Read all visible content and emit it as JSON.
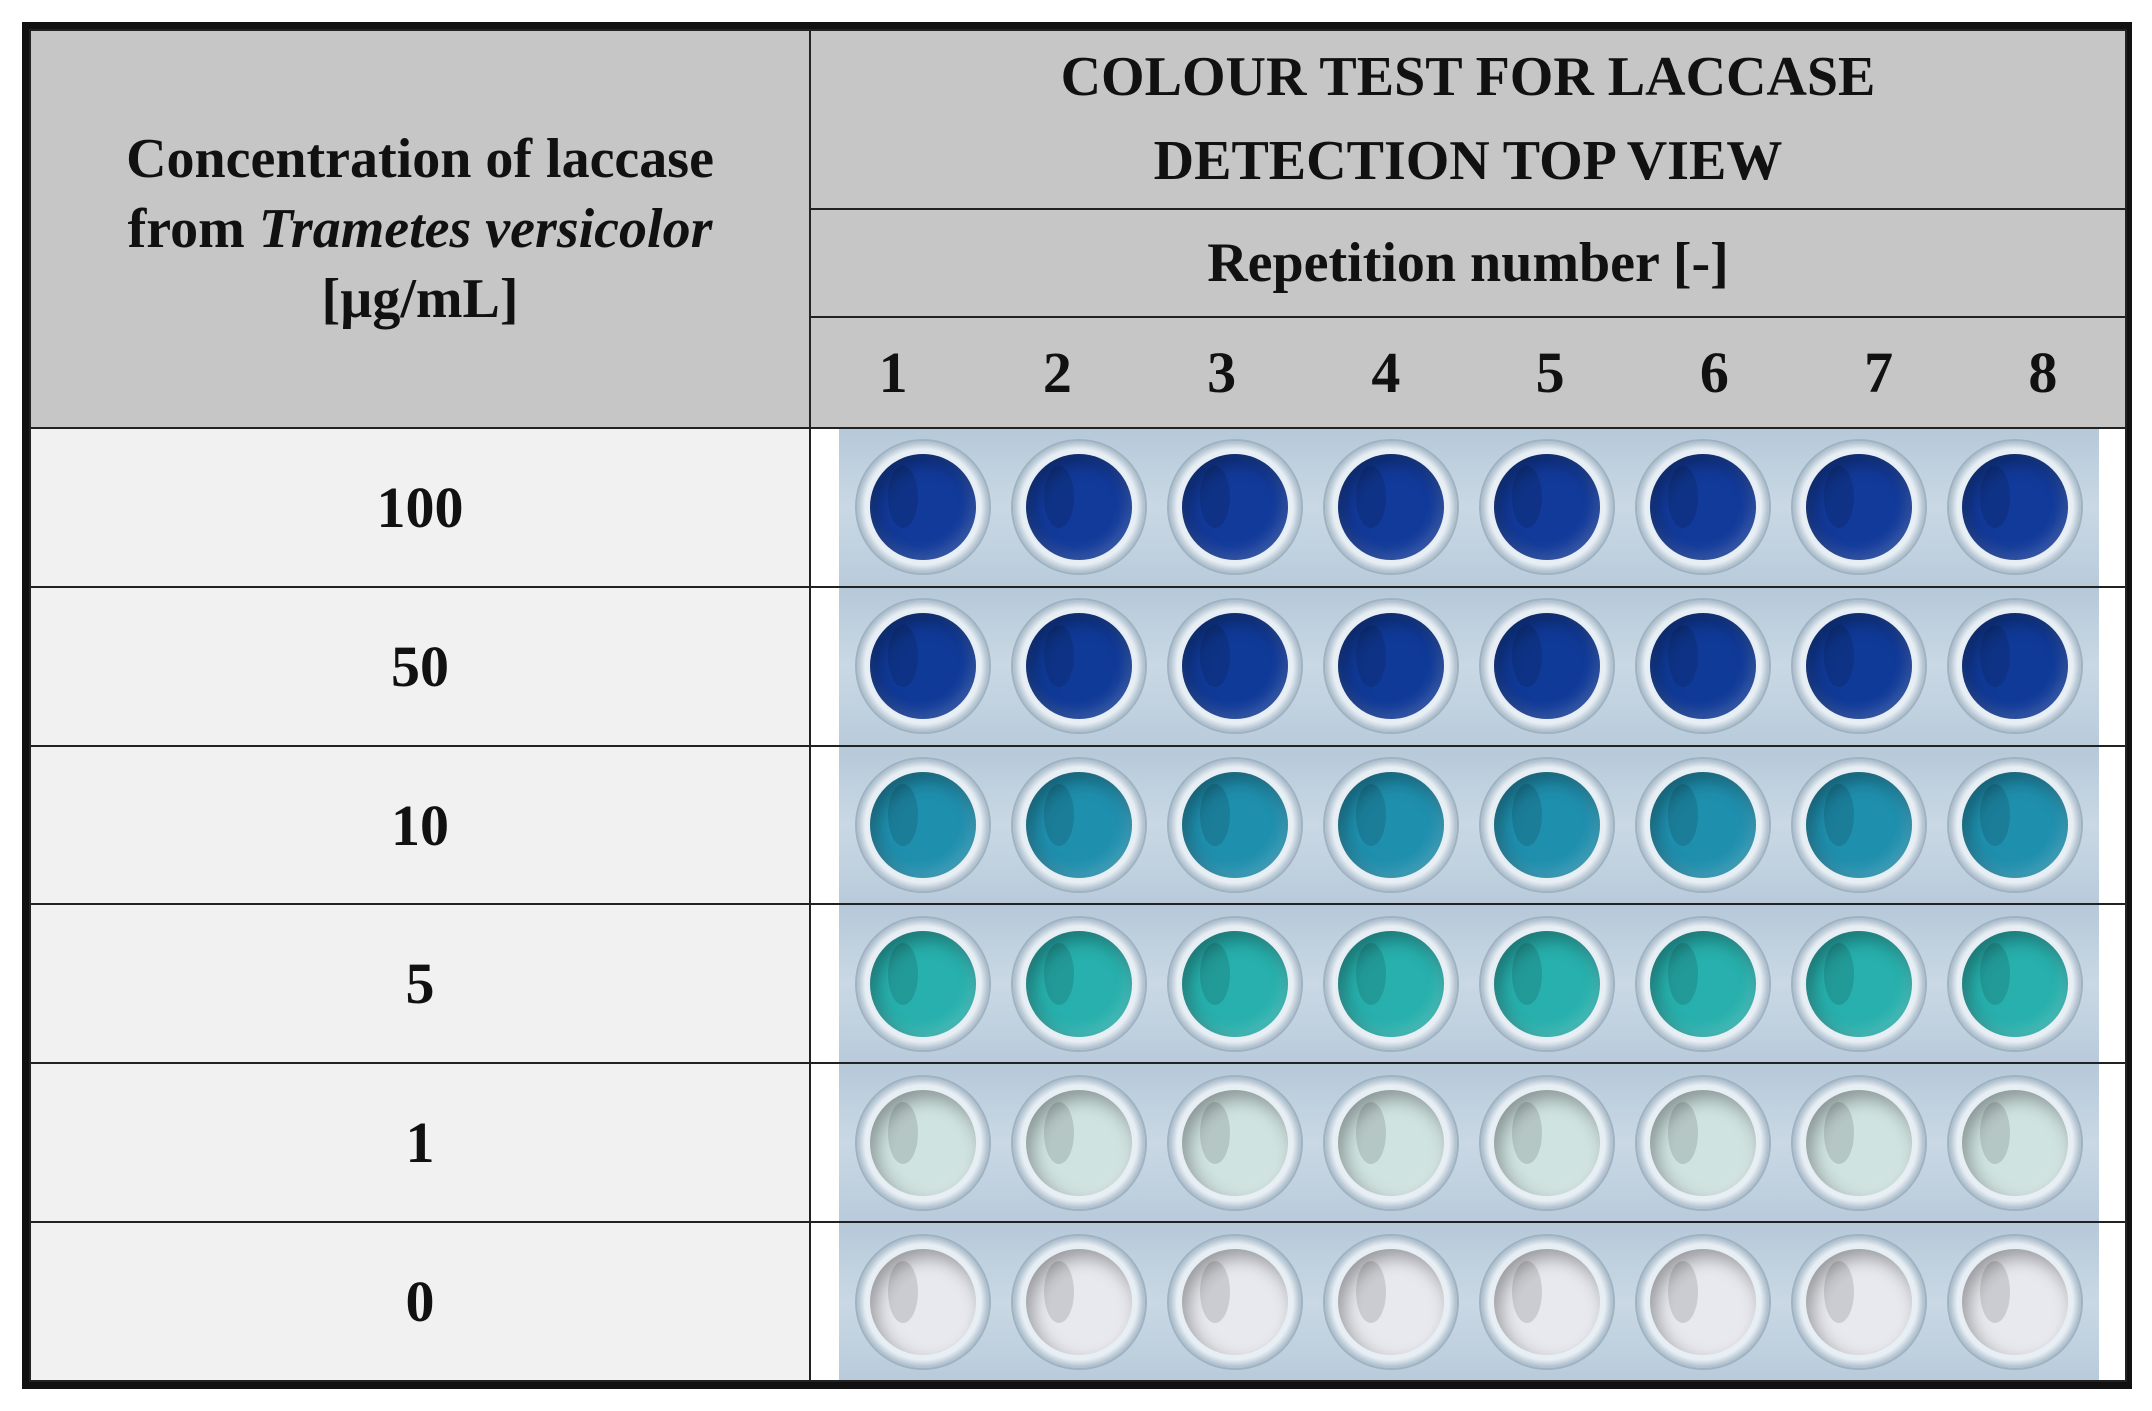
{
  "header": {
    "concentration_line1": "Concentration of laccase",
    "concentration_line2_prefix": "from ",
    "concentration_line2_species": "Trametes versicolor",
    "concentration_unit": "[µg/mL]",
    "title_line1": "COLOUR TEST FOR LACCASE",
    "title_line2": "DETECTION TOP VIEW",
    "repetition_label": "Repetition number [-]",
    "repetitions": [
      "1",
      "2",
      "3",
      "4",
      "5",
      "6",
      "7",
      "8"
    ]
  },
  "rows": [
    {
      "concentration": "100",
      "well_color": "#123a9a"
    },
    {
      "concentration": "50",
      "well_color": "#103a98"
    },
    {
      "concentration": "10",
      "well_color": "#1f8fae"
    },
    {
      "concentration": "5",
      "well_color": "#27b0ad"
    },
    {
      "concentration": "1",
      "well_color": "#cfe3e1"
    },
    {
      "concentration": "0",
      "well_color": "#e8e9ef"
    }
  ]
}
